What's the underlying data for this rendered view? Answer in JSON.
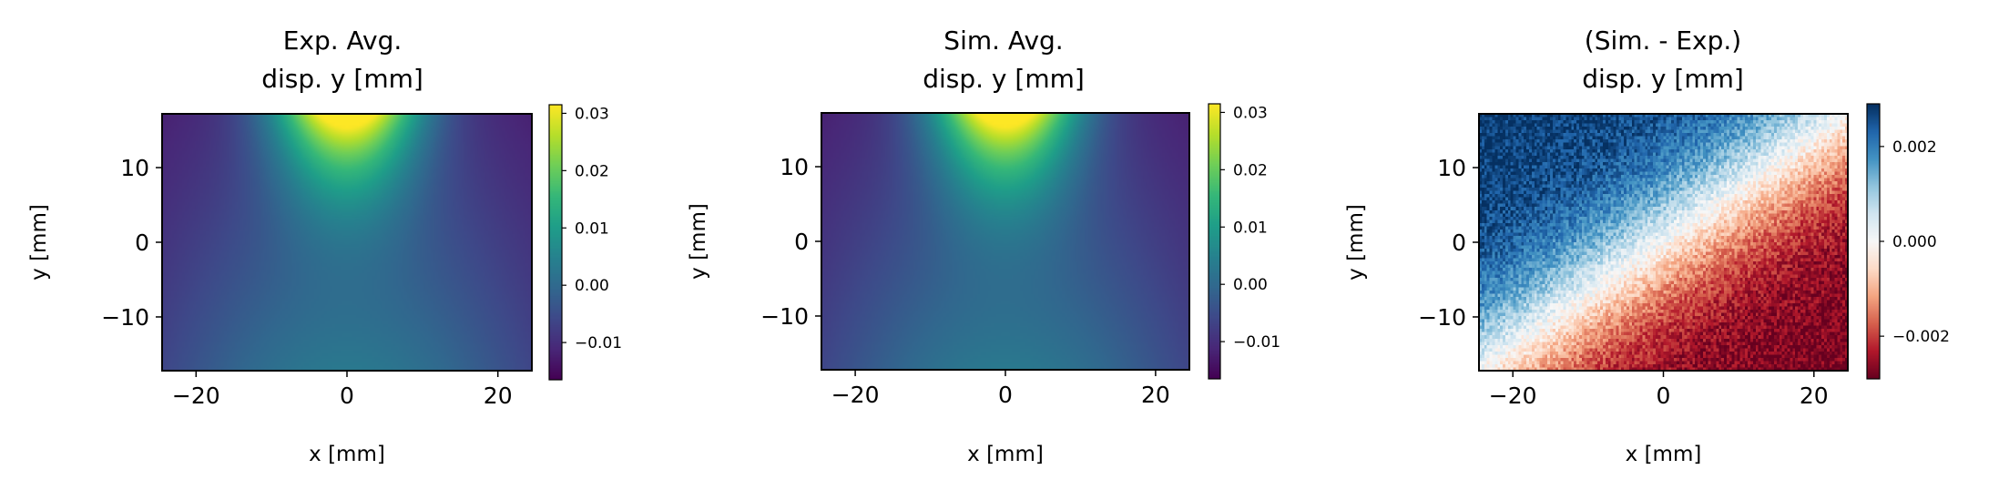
{
  "colors": {
    "viridis": [
      "#440154",
      "#482878",
      "#3e4989",
      "#31688e",
      "#26828e",
      "#1f9e89",
      "#35b779",
      "#6ece58",
      "#b5de2b",
      "#fde725"
    ],
    "rdbu": [
      "#67001f",
      "#b2182b",
      "#d6604d",
      "#f4a582",
      "#fddbc7",
      "#f7f7f7",
      "#d1e5f0",
      "#92c5de",
      "#4393c3",
      "#2166ac",
      "#053061"
    ]
  },
  "chart_data": [
    {
      "type": "heatmap",
      "title": "Exp. Avg.\ndisp. y [mm]",
      "title_lines": [
        "Exp. Avg.",
        "disp. y [mm]"
      ],
      "xlabel": "x [mm]",
      "ylabel": "y [mm]",
      "xlim": [
        -24.5,
        24.5
      ],
      "ylim": [
        -17.2,
        17.2
      ],
      "xticks": [
        -20,
        0,
        20
      ],
      "xtick_labels": [
        "−20",
        "0",
        "20"
      ],
      "yticks": [
        -10,
        0,
        10
      ],
      "ytick_labels": [
        "−10",
        "0",
        "10"
      ],
      "field": "Peak ≈ 0.031 near (x=0, y=17); minimum ≈ −0.016 at left and right edges near y=−17",
      "colormap": "viridis",
      "colorbar": {
        "range": [
          -0.0165,
          0.0315
        ],
        "ticks": [
          -0.01,
          0.0,
          0.01,
          0.02,
          0.03
        ],
        "tick_labels": [
          "−0.01",
          "0.00",
          "0.01",
          "0.02",
          "0.03"
        ]
      }
    },
    {
      "type": "heatmap",
      "title": "Sim. Avg.\ndisp. y [mm]",
      "title_lines": [
        "Sim. Avg.",
        "disp. y [mm]"
      ],
      "xlabel": "x [mm]",
      "ylabel": "y [mm]",
      "xlim": [
        -24.5,
        24.5
      ],
      "ylim": [
        -17.2,
        17.2
      ],
      "xticks": [
        -20,
        0,
        20
      ],
      "xtick_labels": [
        "−20",
        "0",
        "20"
      ],
      "yticks": [
        -10,
        0,
        10
      ],
      "ytick_labels": [
        "−10",
        "0",
        "10"
      ],
      "field": "Peak ≈ 0.031 near (x=0, y=17); minimum ≈ −0.016 at left and right edges near y=−17",
      "colormap": "viridis",
      "colorbar": {
        "range": [
          -0.0165,
          0.0315
        ],
        "ticks": [
          -0.01,
          0.0,
          0.01,
          0.02,
          0.03
        ],
        "tick_labels": [
          "−0.01",
          "0.00",
          "0.01",
          "0.02",
          "0.03"
        ]
      }
    },
    {
      "type": "heatmap",
      "title": "(Sim. - Exp.)\ndisp. y [mm]",
      "title_lines": [
        "(Sim. - Exp.)",
        "disp. y [mm]"
      ],
      "xlabel": "x [mm]",
      "ylabel": "y [mm]",
      "xlim": [
        -24.5,
        24.5
      ],
      "ylim": [
        -17.2,
        17.2
      ],
      "xticks": [
        -20,
        0,
        20
      ],
      "xtick_labels": [
        "−20",
        "0",
        "20"
      ],
      "yticks": [
        -10,
        0,
        10
      ],
      "ytick_labels": [
        "−10",
        "0",
        "10"
      ],
      "field": "Diagonal gradient: ≈ +0.0028 at top-left, ≈ −0.0028 at bottom-right, ≈ 0 along the diagonal",
      "colormap": "RdBu",
      "colorbar": {
        "range": [
          -0.0029,
          0.0029
        ],
        "ticks": [
          -0.002,
          0.0,
          0.002
        ],
        "tick_labels": [
          "−0.002",
          "0.000",
          "0.002"
        ]
      }
    }
  ]
}
